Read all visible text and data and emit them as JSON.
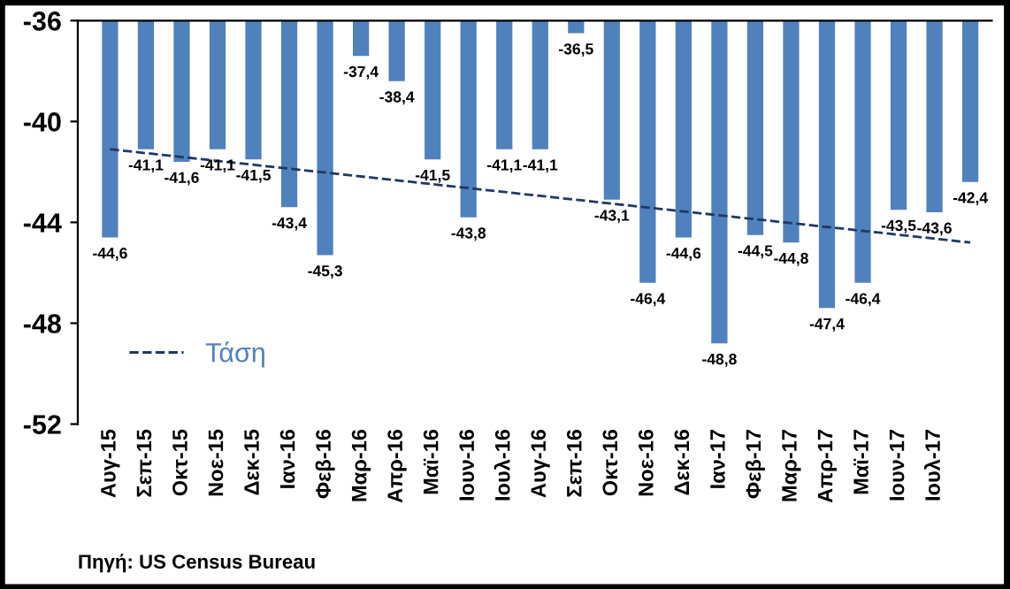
{
  "chart_data": {
    "type": "bar",
    "categories": [
      "Αυγ-15",
      "Σεπ-15",
      "Οκτ-15",
      "Νοε-15",
      "Δεκ-15",
      "Ιαν-16",
      "Φεβ-16",
      "Μαρ-16",
      "Απρ-16",
      "Μαϊ-16",
      "Ιουν-16",
      "Ιουλ-16",
      "Αυγ-16",
      "Σεπ-16",
      "Οκτ-16",
      "Νοε-16",
      "Δεκ-16",
      "Ιαν-17",
      "Φεβ-17",
      "Μαρ-17",
      "Απρ-17",
      "Μαϊ-17",
      "Ιουν-17",
      "Ιουλ-17",
      null
    ],
    "series": [
      {
        "color": "#4f81bd",
        "values": [
          -44.6,
          -41.1,
          -41.6,
          -41.1,
          -41.5,
          -43.4,
          -45.3,
          -37.4,
          -38.4,
          -41.5,
          -43.8,
          -41.1,
          -41.1,
          -36.5,
          -43.1,
          -46.4,
          -44.6,
          -48.8,
          -44.5,
          -44.8,
          -47.4,
          -46.4,
          -43.5,
          -43.6,
          -42.4
        ],
        "value_labels": [
          "-44,6",
          "-41,1",
          "-41,6",
          "-41,1",
          "-41,5",
          "-43,4",
          "-45,3",
          "-37,4",
          "-38,4",
          "-41,5",
          "-43,8",
          "-41,1",
          "-41,1",
          "-36,5",
          "-43,1",
          "-46,4",
          "-44,6",
          "-48,8",
          "-44,5",
          "-44,8",
          "-47,4",
          "-46,4",
          "-43,5",
          "-43,6",
          "-42,4"
        ]
      },
      {
        "type": "line",
        "name": "Τάση",
        "color": "#1f3864",
        "line_style": "dashed",
        "values": [
          -41.1,
          null,
          null,
          null,
          null,
          null,
          null,
          null,
          null,
          null,
          null,
          null,
          null,
          null,
          null,
          null,
          null,
          null,
          null,
          null,
          null,
          null,
          null,
          null,
          -44.8
        ]
      }
    ],
    "ylim": [
      -52,
      -36
    ],
    "yticks": [
      -36,
      -40,
      -44,
      -48,
      -52
    ],
    "grid": false,
    "legend": "bottom left",
    "annotations": [
      "Πηγή: US Census Bureau"
    ]
  }
}
